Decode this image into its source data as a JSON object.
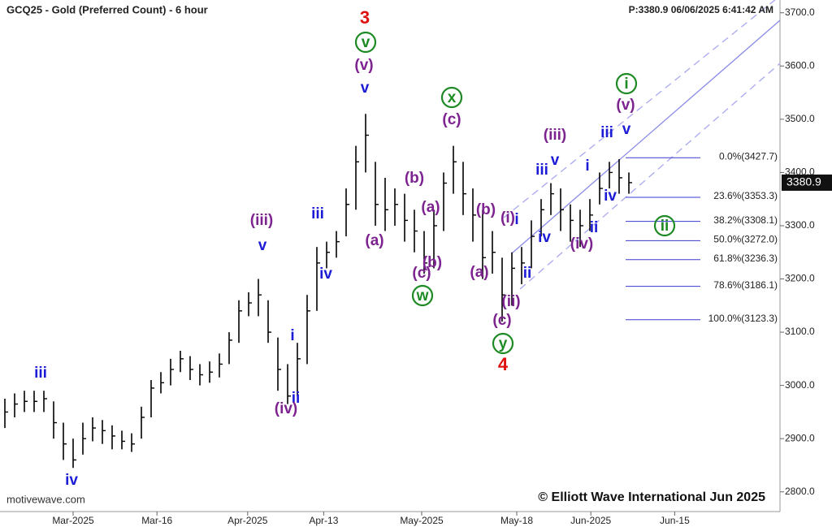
{
  "chart_data": {
    "type": "ohlc",
    "title": "GCQ25 - Gold (Preferred Count) - 6 hour",
    "status": "P:3380.9  06/06/2025 6:41:42 AM",
    "watermark": "motivewave.com",
    "copyright": "© Elliott Wave International Jun 2025",
    "bar_color": "#000000",
    "high": [
      2975,
      2985,
      2990,
      2990,
      2990,
      2970,
      2930,
      2900,
      2930,
      2940,
      2935,
      2925,
      2915,
      2910,
      2960,
      3010,
      3025,
      3050,
      3065,
      3055,
      3040,
      3045,
      3060,
      3100,
      3160,
      3175,
      3200,
      3160,
      3090,
      3040,
      3080,
      3170,
      3260,
      3270,
      3290,
      3370,
      3450,
      3510,
      3420,
      3390,
      3370,
      3360,
      3330,
      3290,
      3330,
      3400,
      3450,
      3420,
      3370,
      3330,
      3290,
      3240,
      3250,
      3260,
      3310,
      3350,
      3380,
      3370,
      3340,
      3330,
      3350,
      3400,
      3420,
      3425,
      3400
    ],
    "low": [
      2920,
      2940,
      2950,
      2950,
      2950,
      2900,
      2860,
      2845,
      2870,
      2895,
      2890,
      2880,
      2880,
      2875,
      2900,
      2940,
      2985,
      3000,
      3025,
      3010,
      3000,
      3005,
      3015,
      3040,
      3080,
      3130,
      3130,
      3080,
      2990,
      2965,
      2980,
      3040,
      3140,
      3220,
      3240,
      3280,
      3330,
      3400,
      3300,
      3290,
      3300,
      3270,
      3250,
      3210,
      3220,
      3290,
      3360,
      3320,
      3270,
      3200,
      3210,
      3120,
      3150,
      3190,
      3220,
      3280,
      3320,
      3290,
      3270,
      3260,
      3290,
      3340,
      3370,
      3360,
      3360
    ],
    "close": [
      2950,
      2965,
      2970,
      2970,
      2975,
      2930,
      2890,
      2860,
      2900,
      2920,
      2915,
      2905,
      2895,
      2890,
      2940,
      2995,
      3005,
      3030,
      3050,
      3030,
      3020,
      3025,
      3040,
      3085,
      3140,
      3155,
      3170,
      3100,
      3030,
      2980,
      3050,
      3140,
      3230,
      3250,
      3270,
      3340,
      3420,
      3470,
      3340,
      3330,
      3340,
      3310,
      3290,
      3230,
      3300,
      3380,
      3420,
      3360,
      3320,
      3240,
      3250,
      3170,
      3220,
      3230,
      3280,
      3330,
      3360,
      3330,
      3310,
      3300,
      3320,
      3370,
      3400,
      3390,
      3380.9
    ],
    "xlim": [
      -0.5,
      79.5
    ],
    "xticks": [
      {
        "value": 7,
        "label": "Mar-2025"
      },
      {
        "value": 15.6,
        "label": "Mar-16"
      },
      {
        "value": 24.9,
        "label": "Apr-2025"
      },
      {
        "value": 32.7,
        "label": "Apr-13"
      },
      {
        "value": 42.75,
        "label": "May-2025"
      },
      {
        "value": 52.5,
        "label": "May-18"
      },
      {
        "value": 60.1,
        "label": "Jun-2025"
      },
      {
        "value": 68.7,
        "label": "Jun-15"
      }
    ],
    "ylim": [
      2763,
      3724
    ],
    "yticks": [
      {
        "value": 2800,
        "label": "2800.0"
      },
      {
        "value": 2900,
        "label": "2900.0"
      },
      {
        "value": 3000,
        "label": "3000.0"
      },
      {
        "value": 3100,
        "label": "3100.0"
      },
      {
        "value": 3200,
        "label": "3200.0"
      },
      {
        "value": 3300,
        "label": "3300.0"
      },
      {
        "value": 3400,
        "label": "3400.0"
      },
      {
        "value": 3500,
        "label": "3500.0"
      },
      {
        "value": 3600,
        "label": "3600.0"
      },
      {
        "value": 3700,
        "label": "3700.0"
      }
    ],
    "fib_levels": [
      {
        "value": 3427.7,
        "label": "0.0%(3427.7)"
      },
      {
        "value": 3353.3,
        "label": "23.6%(3353.3)"
      },
      {
        "value": 3308.1,
        "label": "38.2%(3308.1)"
      },
      {
        "value": 3272.0,
        "label": "50.0%(3272.0)"
      },
      {
        "value": 3236.3,
        "label": "61.8%(3236.3)"
      },
      {
        "value": 3186.1,
        "label": "78.6%(3186.1)"
      },
      {
        "value": 3123.3,
        "label": "100.0%(3123.3)"
      }
    ],
    "fib_color": "#3a3ad0",
    "wave_colors": {
      "blue": "#1c1cd6",
      "purple": "#7d2390",
      "green": "#1e8a24",
      "red": "#e01010"
    },
    "wave_labels": [
      {
        "text": "3",
        "color": "red"
      },
      {
        "text": "v",
        "color": "green"
      },
      {
        "text": "(v)",
        "color": "purple"
      },
      {
        "text": "v",
        "color": "blue"
      },
      {
        "text": "iii",
        "color": "blue"
      },
      {
        "text": "iv",
        "color": "blue"
      },
      {
        "text": "(iii)",
        "color": "purple"
      },
      {
        "text": "v",
        "color": "blue"
      },
      {
        "text": "iii",
        "color": "blue"
      },
      {
        "text": "iv",
        "color": "blue"
      },
      {
        "text": "i",
        "color": "blue"
      },
      {
        "text": "ii",
        "color": "blue"
      },
      {
        "text": "(iv)",
        "color": "purple"
      },
      {
        "text": "(a)",
        "color": "purple"
      },
      {
        "text": "(b)",
        "color": "purple"
      },
      {
        "text": "(a)",
        "color": "purple"
      },
      {
        "text": "(c)",
        "color": "purple"
      },
      {
        "text": "(b)",
        "color": "purple"
      },
      {
        "text": "w",
        "color": "green"
      },
      {
        "text": "x",
        "color": "green"
      },
      {
        "text": "(c)",
        "color": "purple"
      },
      {
        "text": "(b)",
        "color": "purple"
      },
      {
        "text": "(i)",
        "color": "purple"
      },
      {
        "text": "i",
        "color": "blue"
      },
      {
        "text": "(a)",
        "color": "purple"
      },
      {
        "text": "ii",
        "color": "blue"
      },
      {
        "text": "iv",
        "color": "blue"
      },
      {
        "text": "(ii)",
        "color": "purple"
      },
      {
        "text": "(c)",
        "color": "purple"
      },
      {
        "text": "y",
        "color": "green"
      },
      {
        "text": "4",
        "color": "red"
      },
      {
        "text": "(iii)",
        "color": "purple"
      },
      {
        "text": "v",
        "color": "blue"
      },
      {
        "text": "iii",
        "color": "blue"
      },
      {
        "text": "i",
        "color": "blue"
      },
      {
        "text": "iii",
        "color": "blue"
      },
      {
        "text": "v",
        "color": "blue"
      },
      {
        "text": "(v)",
        "color": "purple"
      },
      {
        "text": "i",
        "color": "green"
      },
      {
        "text": "iv",
        "color": "blue"
      },
      {
        "text": "ii",
        "color": "blue"
      },
      {
        "text": "(iv)",
        "color": "purple"
      },
      {
        "text": "ii",
        "color": "green"
      }
    ]
  }
}
